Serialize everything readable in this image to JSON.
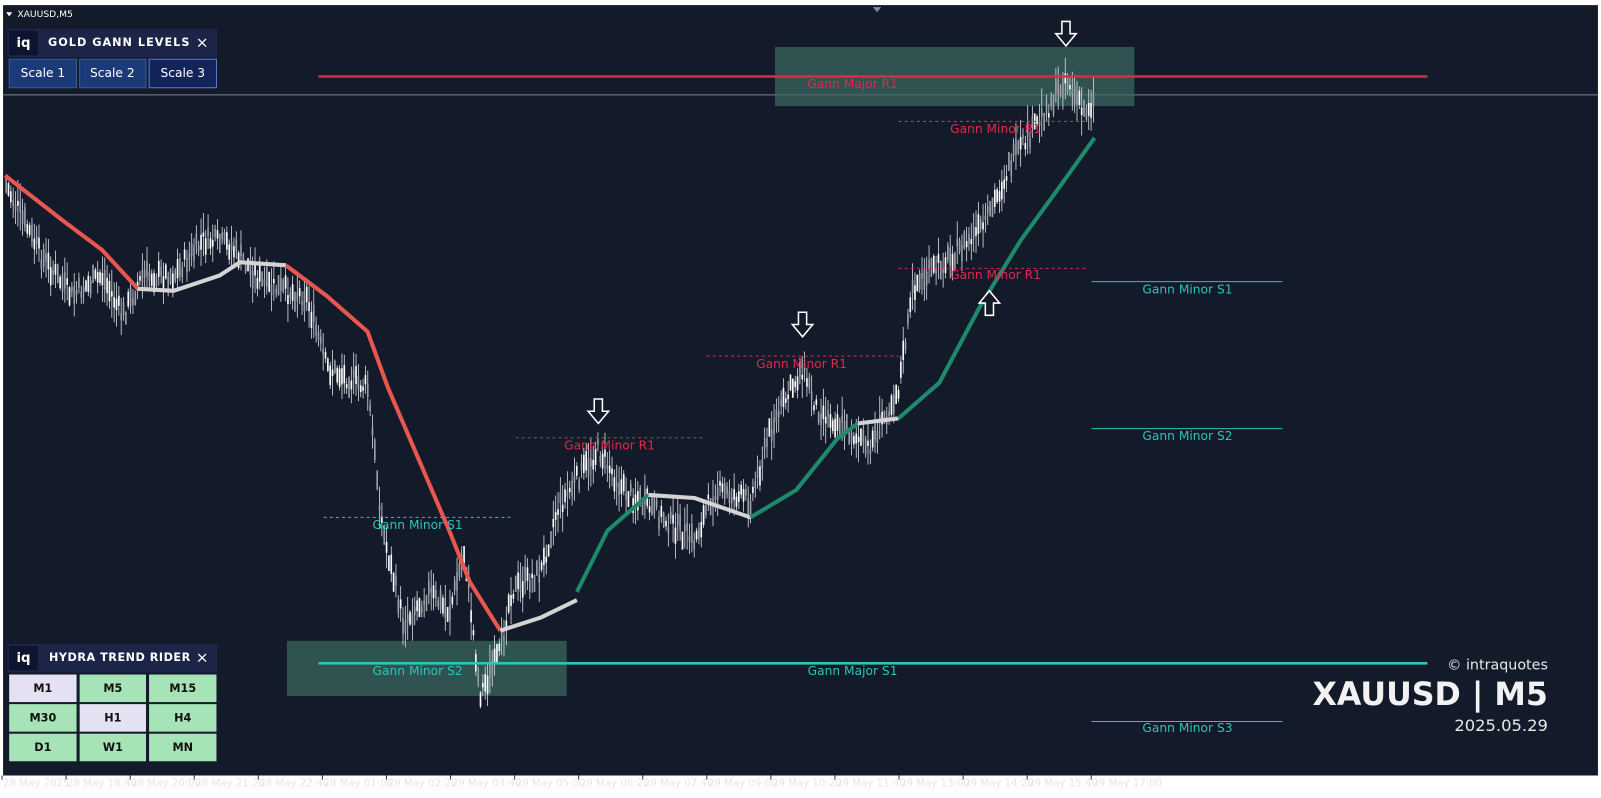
{
  "window": {
    "title": "XAUUSD,M5"
  },
  "gann_panel": {
    "logo": "iq",
    "title": "GOLD GANN LEVELS",
    "close": "×",
    "buttons": [
      "Scale 1",
      "Scale 2",
      "Scale 3"
    ]
  },
  "trend_panel": {
    "logo": "iq",
    "title": "HYDRA TREND RIDER",
    "close": "×",
    "timeframes": [
      [
        "M1",
        "M5",
        "M15"
      ],
      [
        "M30",
        "H1",
        "H4"
      ],
      [
        "D1",
        "W1",
        "MN"
      ]
    ]
  },
  "levels": [
    "Gann Major R1",
    "Gann Minor R1",
    "Gann Minor R1",
    "Gann Minor R1",
    "Gann Minor R1",
    "Gann Minor S1",
    "Gann Minor S2",
    "Gann Major S1",
    "Gann Minor S1",
    "Gann Minor S2",
    "Gann Minor S3"
  ],
  "watermark": {
    "copyright": "© intraquotes",
    "symbol": "XAUUSD | M5",
    "date": "2025.05.29"
  },
  "time_axis": [
    "28 May 2025",
    "28 May 18:40",
    "28 May 20:00",
    "28 May 21:20",
    "28 May 22:40",
    "29 May 01:00",
    "29 May 02:20",
    "29 May 03:40",
    "29 May 05:00",
    "29 May 06:20",
    "29 May 07:40",
    "29 May 09:00",
    "29 May 10:20",
    "29 May 11:40",
    "29 May 13:00",
    "29 May 14:20",
    "29 May 15:40",
    "29 May 17:00"
  ]
}
